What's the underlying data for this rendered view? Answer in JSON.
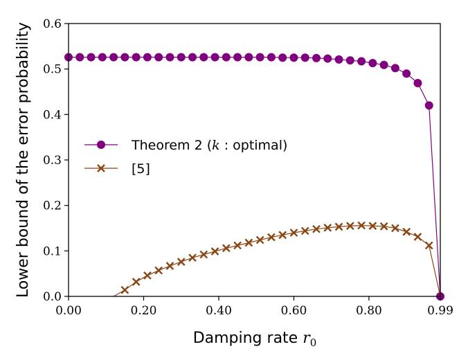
{
  "chart_data": {
    "type": "line",
    "xlabel": "Damping rate",
    "xlabel_var": "r",
    "xlabel_sub": "0",
    "ylabel": "Lower bound of the error probability",
    "xlim": [
      0,
      0.99
    ],
    "ylim": [
      0,
      0.6
    ],
    "x_ticks": [
      0,
      0.2,
      0.4,
      0.6,
      0.8,
      0.99
    ],
    "x_tick_labels": [
      "0.00",
      "0.20",
      "0.40",
      "0.60",
      "0.80",
      "0.99"
    ],
    "y_ticks": [
      0,
      0.1,
      0.2,
      0.3,
      0.4,
      0.5,
      0.6
    ],
    "y_tick_labels": [
      "0.0",
      "0.1",
      "0.2",
      "0.3",
      "0.4",
      "0.5",
      "0.6"
    ],
    "grid": false,
    "legend_position": "center-left",
    "series": [
      {
        "name": "Theorem 2 (k : optimal)",
        "legend_prefix": "Theorem 2 (",
        "legend_var": "k",
        "legend_suffix": " : optimal)",
        "color": "#800080",
        "marker": "circle",
        "x": [
          0.0,
          0.03,
          0.06,
          0.09,
          0.12,
          0.15,
          0.18,
          0.21,
          0.24,
          0.27,
          0.3,
          0.33,
          0.36,
          0.39,
          0.42,
          0.45,
          0.48,
          0.51,
          0.54,
          0.57,
          0.6,
          0.63,
          0.66,
          0.69,
          0.72,
          0.75,
          0.78,
          0.81,
          0.84,
          0.87,
          0.9,
          0.93,
          0.96,
          0.99
        ],
        "y": [
          0.526,
          0.526,
          0.526,
          0.526,
          0.526,
          0.526,
          0.526,
          0.526,
          0.526,
          0.526,
          0.526,
          0.526,
          0.526,
          0.526,
          0.526,
          0.526,
          0.526,
          0.526,
          0.526,
          0.525,
          0.525,
          0.525,
          0.524,
          0.523,
          0.521,
          0.519,
          0.517,
          0.513,
          0.509,
          0.502,
          0.49,
          0.469,
          0.42,
          0.0
        ]
      },
      {
        "name": "[5]",
        "color": "#8B4513",
        "marker": "x",
        "x": [
          0.12,
          0.15,
          0.18,
          0.21,
          0.24,
          0.27,
          0.3,
          0.33,
          0.36,
          0.39,
          0.42,
          0.45,
          0.48,
          0.51,
          0.54,
          0.57,
          0.6,
          0.63,
          0.66,
          0.69,
          0.72,
          0.75,
          0.78,
          0.81,
          0.84,
          0.87,
          0.9,
          0.93,
          0.96,
          0.99
        ],
        "y": [
          0.0,
          0.014,
          0.032,
          0.046,
          0.057,
          0.067,
          0.076,
          0.085,
          0.092,
          0.099,
          0.106,
          0.112,
          0.118,
          0.124,
          0.13,
          0.135,
          0.14,
          0.144,
          0.148,
          0.151,
          0.153,
          0.155,
          0.156,
          0.155,
          0.154,
          0.15,
          0.142,
          0.131,
          0.112,
          0.0
        ],
        "marked_from_index": 1,
        "marked_to_index": 28
      }
    ]
  }
}
